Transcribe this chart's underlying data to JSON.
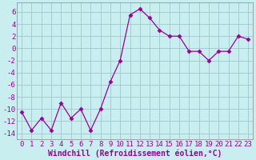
{
  "x": [
    0,
    1,
    2,
    3,
    4,
    5,
    6,
    7,
    8,
    9,
    10,
    11,
    12,
    13,
    14,
    15,
    16,
    17,
    18,
    19,
    20,
    21,
    22,
    23
  ],
  "y": [
    -10.5,
    -13.5,
    -11.5,
    -13.5,
    -9.0,
    -11.5,
    -10.0,
    -13.5,
    -10.0,
    -5.5,
    -2.0,
    5.5,
    6.5,
    5.0,
    3.0,
    2.0,
    2.0,
    -0.5,
    -0.5,
    -2.0,
    -0.5,
    -0.5,
    2.0,
    1.5
  ],
  "line_color": "#990099",
  "marker": "D",
  "marker_size": 2.5,
  "bg_color": "#c8eef0",
  "grid_color": "#a0c8cc",
  "xlabel": "Windchill (Refroidissement éolien,°C)",
  "ylabel": "",
  "title": "",
  "xlim": [
    -0.5,
    23.5
  ],
  "ylim": [
    -15,
    7.5
  ],
  "yticks": [
    -14,
    -12,
    -10,
    -8,
    -6,
    -4,
    -2,
    0,
    2,
    4,
    6
  ],
  "xtick_labels": [
    "0",
    "1",
    "2",
    "3",
    "4",
    "5",
    "6",
    "7",
    "8",
    "9",
    "10",
    "11",
    "12",
    "13",
    "14",
    "15",
    "16",
    "17",
    "18",
    "19",
    "20",
    "21",
    "22",
    "23"
  ],
  "tick_font_size": 6.5,
  "label_font_size": 7.0,
  "spine_color": "#888888"
}
